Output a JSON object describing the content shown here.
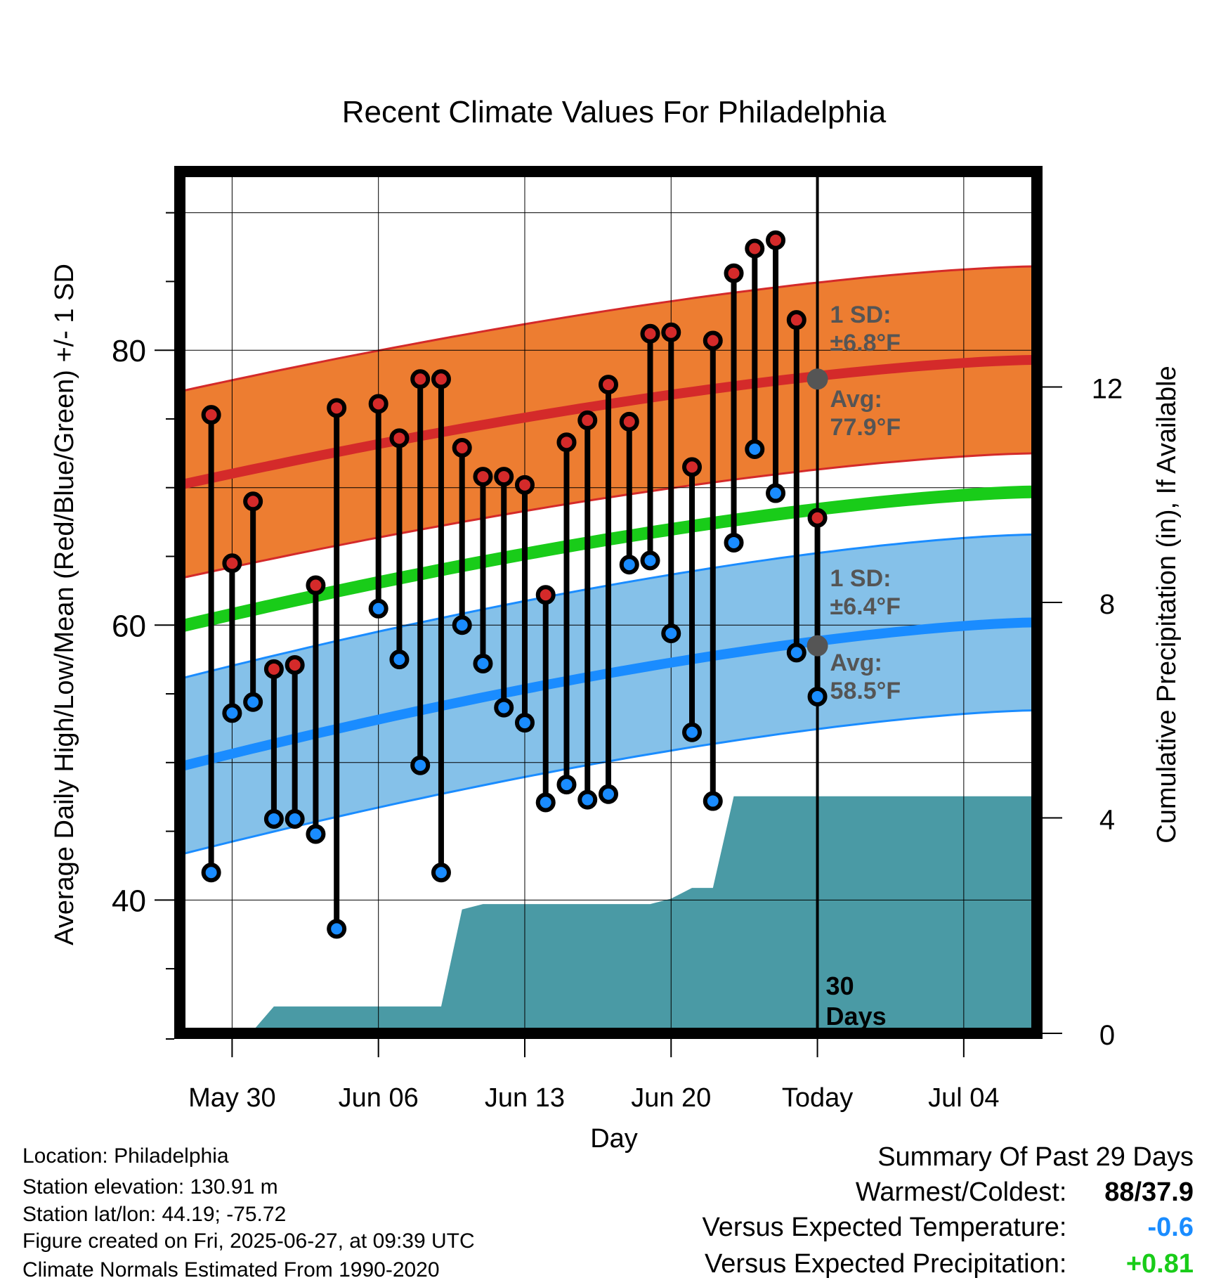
{
  "chart_data": {
    "type": "line",
    "title": "Recent Climate Values For Philadelphia",
    "xlabel": "Day",
    "ylabel": "Average Daily High/Low/Mean (Red/Blue/Green) +/- 1 SD",
    "y2label": "Cumulative Precipitation (in), If Available",
    "x_day_range": [
      -30.5,
      10.5
    ],
    "ylim": [
      30.3,
      93
    ],
    "y_ticks": [
      "40",
      "60",
      "80"
    ],
    "y2lim": [
      0,
      16
    ],
    "y2_ticks": [
      "0",
      "4",
      "8",
      "12"
    ],
    "x_ticks": [
      {
        "day": -28,
        "label": "May 30"
      },
      {
        "day": -21,
        "label": "Jun 06"
      },
      {
        "day": -14,
        "label": "Jun 13"
      },
      {
        "day": -7,
        "label": "Jun 20"
      },
      {
        "day": 0,
        "label": "Today"
      },
      {
        "day": 7,
        "label": "Jul 04"
      }
    ],
    "grid": true,
    "today_marker": {
      "day": 0,
      "label_line1": "30",
      "label_line2": "Days"
    },
    "normal_high": {
      "start": 70.2,
      "end": 79.3,
      "sd_label_line1": "1 SD:",
      "sd_label_line2": "±6.8°F",
      "avg_label_line1": "Avg:",
      "avg_label_line2": "77.9°F",
      "avg_value": 77.9,
      "sd": 6.8,
      "color": "#ed7d31",
      "line_color": "#d42a2a"
    },
    "normal_low": {
      "start": 49.7,
      "end": 60.2,
      "sd_label_line1": "1 SD:",
      "sd_label_line2": "±6.4°F",
      "avg_label_line1": "Avg:",
      "avg_label_line2": "58.5°F",
      "avg_value": 58.5,
      "sd": 6.4,
      "color": "#85c1e9",
      "line_color": "#1a8cff"
    },
    "normal_mean": {
      "start": 59.9,
      "end": 69.7,
      "color": "#19cc19"
    },
    "daily": [
      {
        "day": -29,
        "high": 75.3,
        "low": 42.0
      },
      {
        "day": -28,
        "high": 64.5,
        "low": 53.6
      },
      {
        "day": -27,
        "high": 69.0,
        "low": 54.4
      },
      {
        "day": -26,
        "high": 56.8,
        "low": 45.9
      },
      {
        "day": -25,
        "high": 57.1,
        "low": 45.9
      },
      {
        "day": -24,
        "high": 62.9,
        "low": 44.8
      },
      {
        "day": -23,
        "high": 75.8,
        "low": 37.9
      },
      {
        "day": -21,
        "high": 76.1,
        "low": 61.2
      },
      {
        "day": -20,
        "high": 73.6,
        "low": 57.5
      },
      {
        "day": -19,
        "high": 77.9,
        "low": 49.8
      },
      {
        "day": -18,
        "high": 77.9,
        "low": 42.0
      },
      {
        "day": -17,
        "high": 72.9,
        "low": 60.0
      },
      {
        "day": -16,
        "high": 70.8,
        "low": 57.2
      },
      {
        "day": -15,
        "high": 70.8,
        "low": 54.0
      },
      {
        "day": -14,
        "high": 70.2,
        "low": 52.9
      },
      {
        "day": -13,
        "high": 62.2,
        "low": 47.1
      },
      {
        "day": -12,
        "high": 73.3,
        "low": 48.4
      },
      {
        "day": -11,
        "high": 74.9,
        "low": 47.3
      },
      {
        "day": -10,
        "high": 77.5,
        "low": 47.7
      },
      {
        "day": -9,
        "high": 74.8,
        "low": 64.4
      },
      {
        "day": -8,
        "high": 81.2,
        "low": 64.7
      },
      {
        "day": -7,
        "high": 81.3,
        "low": 59.4
      },
      {
        "day": -6,
        "high": 71.5,
        "low": 52.2
      },
      {
        "day": -5,
        "high": 80.7,
        "low": 47.2
      },
      {
        "day": -4,
        "high": 85.6,
        "low": 66.0
      },
      {
        "day": -3,
        "high": 87.4,
        "low": 72.8
      },
      {
        "day": -2,
        "high": 88.0,
        "low": 69.6
      },
      {
        "day": -1,
        "high": 82.2,
        "low": 58.0
      },
      {
        "day": 0,
        "high": 67.8,
        "low": 54.8
      }
    ],
    "precip_cumulative": [
      [
        -30.5,
        0.0
      ],
      [
        -29,
        0.0
      ],
      [
        -28,
        0.05
      ],
      [
        -27,
        0.05
      ],
      [
        -26,
        0.5
      ],
      [
        -19,
        0.5
      ],
      [
        -18,
        0.5
      ],
      [
        -17,
        2.3
      ],
      [
        -16,
        2.4
      ],
      [
        -8,
        2.4
      ],
      [
        -7,
        2.5
      ],
      [
        -6,
        2.7
      ],
      [
        -5,
        2.7
      ],
      [
        -4,
        4.4
      ],
      [
        10.5,
        4.4
      ]
    ],
    "precip_color": "#4a9aa5"
  },
  "info": {
    "location": "Location: Philadelphia",
    "elevation": "Station elevation: 130.91 m",
    "latlon": "Station lat/lon: 44.19; -75.72",
    "created": "Figure created on Fri, 2025-06-27, at 09:39 UTC",
    "normals": "Climate Normals Estimated From 1990-2020"
  },
  "summary": {
    "title": "Summary Of Past 29 Days",
    "warmest_label": "Warmest/Coldest:",
    "warmest_value": "88/37.9",
    "temp_label": "Versus Expected Temperature:",
    "temp_value": "-0.6",
    "temp_color": "#1a8cff",
    "precip_label": "Versus Expected Precipitation:",
    "precip_value": "+0.81",
    "precip_color": "#19cc19"
  }
}
